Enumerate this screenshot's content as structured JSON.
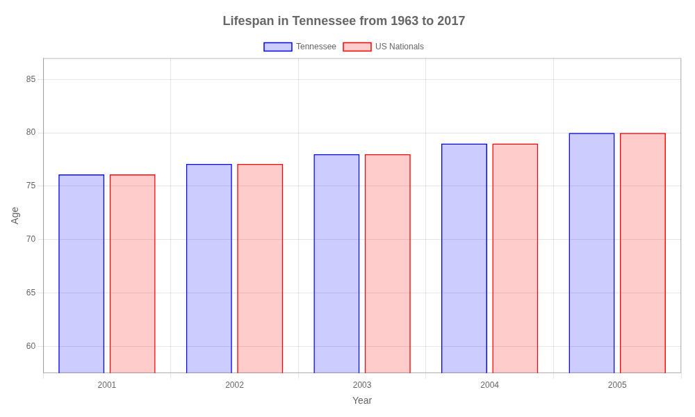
{
  "chart_data": {
    "type": "bar",
    "title": "Lifespan in Tennessee from 1963 to 2017",
    "x_label": "Year",
    "y_label": "Age",
    "categories": [
      "2001",
      "2002",
      "2003",
      "2004",
      "2005"
    ],
    "series": [
      {
        "name": "Tennessee",
        "color": "#0000ff",
        "values": [
          76.1,
          77.1,
          78.0,
          79.0,
          80.0
        ]
      },
      {
        "name": "US Nationals",
        "color": "#ff0000",
        "values": [
          76.1,
          77.1,
          78.0,
          79.0,
          80.0
        ]
      }
    ],
    "ylim": [
      57.5,
      87
    ],
    "yticks": [
      60,
      65,
      70,
      75,
      80,
      85
    ],
    "grid": true,
    "legend": "top"
  }
}
